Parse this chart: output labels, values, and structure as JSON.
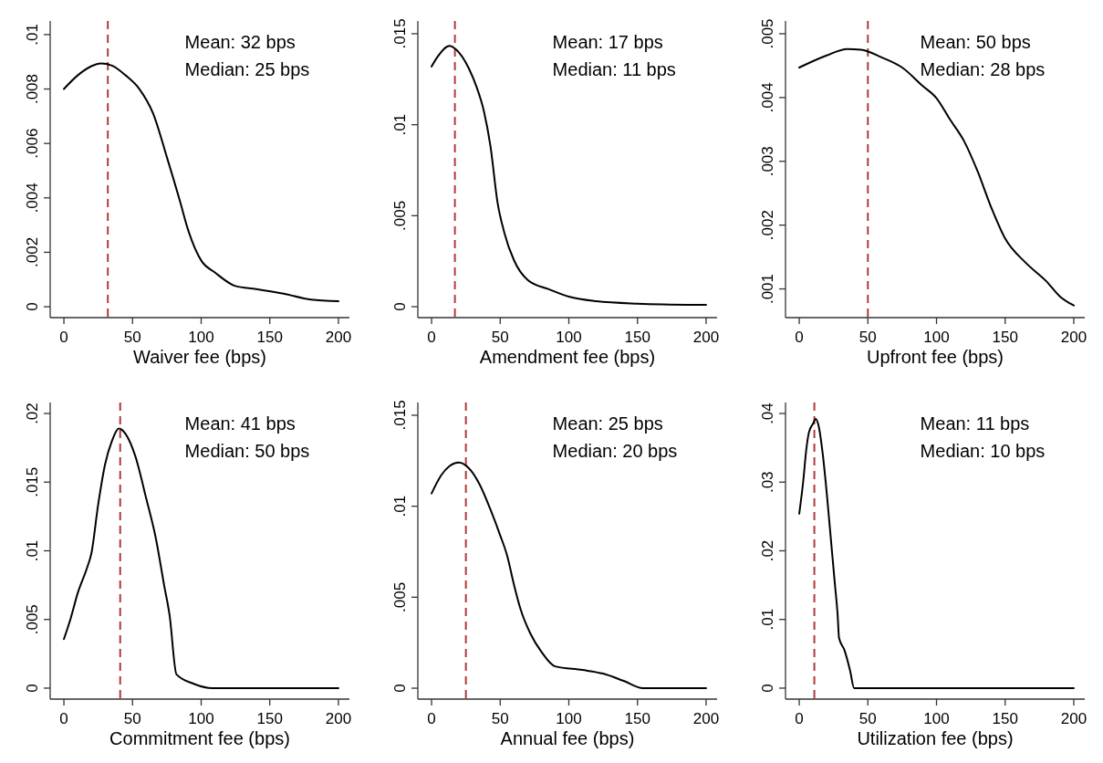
{
  "chart_data": [
    {
      "type": "line",
      "xlabel": "Waiver fee (bps)",
      "color": "#000000",
      "line_style": "solid",
      "x": [
        0,
        10,
        20,
        27,
        35,
        45,
        55,
        65,
        75,
        85,
        90,
        100,
        110,
        125,
        140,
        160,
        180,
        200
      ],
      "values": [
        0.008,
        0.0085,
        0.00884,
        0.00894,
        0.00886,
        0.0085,
        0.008,
        0.0071,
        0.0055,
        0.0038,
        0.0029,
        0.0017,
        0.00126,
        0.00076,
        0.00065,
        0.00048,
        0.00026,
        0.0002
      ],
      "xlim": [
        -10,
        208
      ],
      "xticks": [
        0,
        50,
        100,
        150,
        200
      ],
      "ylim": [
        -0.0004,
        0.0105
      ],
      "yticks": [
        {
          "value": 0,
          "label": "0"
        },
        {
          "value": 0.002,
          "label": ".002"
        },
        {
          "value": 0.004,
          "label": ".004"
        },
        {
          "value": 0.006,
          "label": ".006"
        },
        {
          "value": 0.008,
          "label": ".008"
        },
        {
          "value": 0.01,
          "label": ".01"
        }
      ],
      "ref_lines": [
        {
          "axis": "x",
          "value": 32,
          "color": "#b03a3a",
          "line_style": "dashed"
        }
      ],
      "annotations": [
        "Mean: 32 bps",
        "Median: 25 bps"
      ]
    },
    {
      "type": "line",
      "xlabel": "Amendment fee (bps)",
      "color": "#000000",
      "line_style": "solid",
      "x": [
        0,
        5,
        13,
        20,
        27,
        33,
        38,
        43,
        48,
        53,
        60,
        70,
        85,
        100,
        120,
        150,
        200
      ],
      "values": [
        0.0132,
        0.0138,
        0.01433,
        0.01396,
        0.01312,
        0.01203,
        0.01078,
        0.00877,
        0.00575,
        0.00407,
        0.00256,
        0.00147,
        0.00097,
        0.00055,
        0.0003,
        0.00017,
        0.0001
      ],
      "xlim": [
        -10,
        208
      ],
      "xticks": [
        0,
        50,
        100,
        150,
        200
      ],
      "ylim": [
        -0.0006,
        0.0157
      ],
      "yticks": [
        {
          "value": 0,
          "label": "0"
        },
        {
          "value": 0.005,
          "label": ".005"
        },
        {
          "value": 0.01,
          "label": ".01"
        },
        {
          "value": 0.015,
          "label": ".015"
        }
      ],
      "ref_lines": [
        {
          "axis": "x",
          "value": 17,
          "color": "#b03a3a",
          "line_style": "dashed"
        }
      ],
      "annotations": [
        "Mean: 17 bps",
        "Median: 11 bps"
      ]
    },
    {
      "type": "line",
      "xlabel": "Upfront fee (bps)",
      "color": "#000000",
      "line_style": "solid",
      "x": [
        0,
        20,
        35,
        45,
        60,
        75,
        90,
        100,
        110,
        120,
        130,
        140,
        150,
        165,
        180,
        190,
        200
      ],
      "values": [
        0.00447,
        0.00466,
        0.00476,
        0.00475,
        0.00463,
        0.00447,
        0.00418,
        0.00399,
        0.00365,
        0.00332,
        0.00284,
        0.00227,
        0.00179,
        0.00141,
        0.00112,
        0.00088,
        0.00074
      ],
      "xlim": [
        -10,
        208
      ],
      "xticks": [
        0,
        50,
        100,
        150,
        200
      ],
      "ylim": [
        0.00055,
        0.0052
      ],
      "yticks": [
        {
          "value": 0.001,
          "label": ".001"
        },
        {
          "value": 0.002,
          "label": ".002"
        },
        {
          "value": 0.003,
          "label": ".003"
        },
        {
          "value": 0.004,
          "label": ".004"
        },
        {
          "value": 0.005,
          "label": ".005"
        }
      ],
      "ref_lines": [
        {
          "axis": "x",
          "value": 50,
          "color": "#b03a3a",
          "line_style": "dashed"
        }
      ],
      "annotations": [
        "Mean: 50 bps",
        "Median: 28 bps"
      ]
    },
    {
      "type": "line",
      "xlabel": "Commitment fee (bps)",
      "color": "#000000",
      "line_style": "solid",
      "x": [
        0,
        5,
        10,
        17,
        20,
        25,
        30,
        35,
        40,
        45,
        52,
        60,
        67,
        73,
        77,
        82,
        95,
        108,
        200
      ],
      "values": [
        0.00357,
        0.0051,
        0.0069,
        0.0088,
        0.0098,
        0.0134,
        0.0163,
        0.018,
        0.0189,
        0.0185,
        0.0169,
        0.0138,
        0.0109,
        0.0075,
        0.0053,
        0.001,
        0.0003,
        0,
        0
      ],
      "xlim": [
        -10,
        208
      ],
      "xticks": [
        0,
        50,
        100,
        150,
        200
      ],
      "ylim": [
        -0.0008,
        0.0208
      ],
      "yticks": [
        {
          "value": 0,
          "label": "0"
        },
        {
          "value": 0.005,
          "label": ".005"
        },
        {
          "value": 0.01,
          "label": ".01"
        },
        {
          "value": 0.015,
          "label": ".015"
        },
        {
          "value": 0.02,
          "label": ".02"
        }
      ],
      "ref_lines": [
        {
          "axis": "x",
          "value": 41,
          "color": "#b03a3a",
          "line_style": "dashed"
        }
      ],
      "annotations": [
        "Mean: 41 bps",
        "Median: 50 bps"
      ]
    },
    {
      "type": "line",
      "xlabel": "Annual fee (bps)",
      "color": "#000000",
      "line_style": "solid",
      "x": [
        0,
        7,
        13,
        20,
        27,
        35,
        43,
        50,
        55,
        60,
        65,
        72,
        80,
        90,
        110,
        125,
        140,
        154,
        200
      ],
      "values": [
        0.0107,
        0.0117,
        0.0122,
        0.0124,
        0.0121,
        0.0112,
        0.0098,
        0.0084,
        0.0073,
        0.0057,
        0.0043,
        0.003,
        0.002,
        0.0012,
        0.001,
        0.0008,
        0.0004,
        0,
        0
      ],
      "xlim": [
        -10,
        208
      ],
      "xticks": [
        0,
        50,
        100,
        150,
        200
      ],
      "ylim": [
        -0.0006,
        0.0157
      ],
      "yticks": [
        {
          "value": 0,
          "label": "0"
        },
        {
          "value": 0.005,
          "label": ".005"
        },
        {
          "value": 0.01,
          "label": ".01"
        },
        {
          "value": 0.015,
          "label": ".015"
        }
      ],
      "ref_lines": [
        {
          "axis": "x",
          "value": 25,
          "color": "#b03a3a",
          "line_style": "dashed"
        }
      ],
      "annotations": [
        "Mean: 25 bps",
        "Median: 20 bps"
      ]
    },
    {
      "type": "line",
      "xlabel": "Utilization fee (bps)",
      "color": "#000000",
      "line_style": "solid",
      "x": [
        0,
        3,
        5,
        7,
        10,
        12,
        14,
        17,
        20,
        23,
        26,
        28,
        29,
        33,
        37,
        40,
        200
      ],
      "values": [
        0.0254,
        0.0303,
        0.0345,
        0.0372,
        0.0385,
        0.0392,
        0.0383,
        0.0343,
        0.0285,
        0.0218,
        0.0151,
        0.0106,
        0.0073,
        0.0055,
        0.0026,
        0,
        0
      ],
      "xlim": [
        -10,
        208
      ],
      "xticks": [
        0,
        50,
        100,
        150,
        200
      ],
      "ylim": [
        -0.0016,
        0.0416
      ],
      "yticks": [
        {
          "value": 0,
          "label": "0"
        },
        {
          "value": 0.01,
          "label": ".01"
        },
        {
          "value": 0.02,
          "label": ".02"
        },
        {
          "value": 0.03,
          "label": ".03"
        },
        {
          "value": 0.04,
          "label": ".04"
        }
      ],
      "ref_lines": [
        {
          "axis": "x",
          "value": 11,
          "color": "#b03a3a",
          "line_style": "dashed"
        }
      ],
      "annotations": [
        "Mean: 11 bps",
        "Median: 10 bps"
      ]
    }
  ]
}
